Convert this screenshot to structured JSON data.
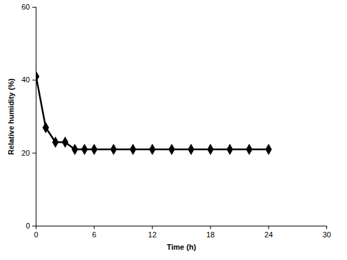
{
  "chart_data": {
    "type": "line",
    "x_label": "Time (h)",
    "y_label": "Relative humidity (%)",
    "x": [
      0,
      1,
      2,
      3,
      4,
      5,
      6,
      8,
      10,
      12,
      14,
      16,
      18,
      20,
      22,
      24
    ],
    "series": [
      {
        "name": "Relative humidity",
        "color": "#000000",
        "marker": "diamond",
        "line_style": "solid",
        "values": [
          41,
          27,
          23,
          23,
          21,
          21,
          21,
          21,
          21,
          21,
          21,
          21,
          21,
          21,
          21,
          21
        ]
      }
    ],
    "xlim": [
      0,
      30
    ],
    "xticks": [
      0,
      6,
      12,
      18,
      24,
      30
    ],
    "ylim": [
      0,
      60
    ],
    "yticks": [
      0,
      20,
      40,
      60
    ],
    "grid": false
  }
}
